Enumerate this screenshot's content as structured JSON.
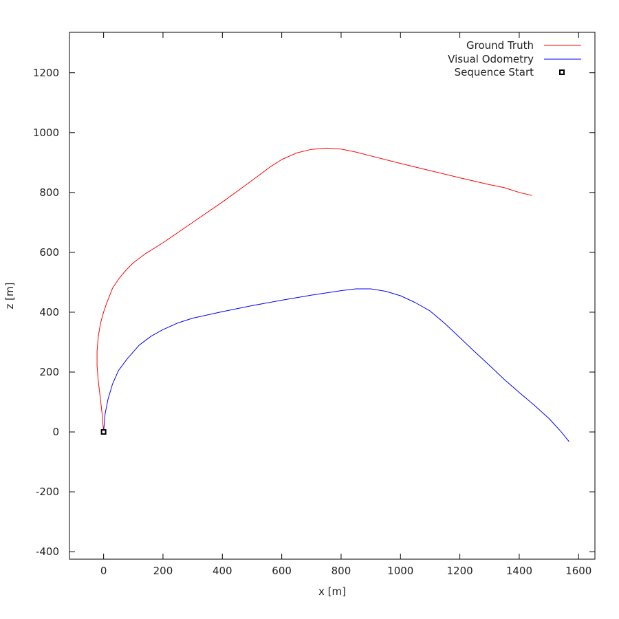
{
  "chart_data": {
    "type": "line",
    "xlabel": "x [m]",
    "ylabel": "z [m]",
    "xlim": [
      -115,
      1655
    ],
    "ylim": [
      -425,
      1335
    ],
    "xticks": [
      0,
      200,
      400,
      600,
      800,
      1000,
      1200,
      1400,
      1600
    ],
    "yticks": [
      -400,
      -200,
      0,
      200,
      400,
      600,
      800,
      1000,
      1200
    ],
    "grid": false,
    "legend_position": "top-right",
    "series": [
      {
        "name": "Ground Truth",
        "color": "#ff0000",
        "points": [
          [
            0,
            0
          ],
          [
            -5,
            60
          ],
          [
            -12,
            120
          ],
          [
            -18,
            170
          ],
          [
            -22,
            220
          ],
          [
            -22,
            270
          ],
          [
            -18,
            320
          ],
          [
            -10,
            365
          ],
          [
            0,
            400
          ],
          [
            10,
            430
          ],
          [
            30,
            480
          ],
          [
            50,
            510
          ],
          [
            75,
            540
          ],
          [
            100,
            565
          ],
          [
            140,
            595
          ],
          [
            200,
            632
          ],
          [
            300,
            700
          ],
          [
            400,
            768
          ],
          [
            500,
            840
          ],
          [
            560,
            885
          ],
          [
            600,
            910
          ],
          [
            650,
            932
          ],
          [
            700,
            944
          ],
          [
            750,
            948
          ],
          [
            800,
            945
          ],
          [
            850,
            935
          ],
          [
            900,
            922
          ],
          [
            1000,
            897
          ],
          [
            1100,
            873
          ],
          [
            1200,
            849
          ],
          [
            1300,
            826
          ],
          [
            1350,
            816
          ],
          [
            1400,
            800
          ],
          [
            1443,
            790
          ]
        ]
      },
      {
        "name": "Visual Odometry",
        "color": "#0000ff",
        "points": [
          [
            0,
            0
          ],
          [
            5,
            60
          ],
          [
            15,
            110
          ],
          [
            30,
            160
          ],
          [
            50,
            205
          ],
          [
            80,
            245
          ],
          [
            120,
            290
          ],
          [
            160,
            320
          ],
          [
            200,
            342
          ],
          [
            250,
            364
          ],
          [
            300,
            380
          ],
          [
            400,
            402
          ],
          [
            500,
            422
          ],
          [
            600,
            440
          ],
          [
            700,
            457
          ],
          [
            800,
            472
          ],
          [
            850,
            478
          ],
          [
            900,
            478
          ],
          [
            950,
            470
          ],
          [
            1000,
            455
          ],
          [
            1050,
            432
          ],
          [
            1100,
            404
          ],
          [
            1150,
            362
          ],
          [
            1200,
            315
          ],
          [
            1250,
            268
          ],
          [
            1300,
            222
          ],
          [
            1350,
            175
          ],
          [
            1400,
            132
          ],
          [
            1450,
            90
          ],
          [
            1500,
            45
          ],
          [
            1540,
            2
          ],
          [
            1568,
            -32
          ]
        ]
      }
    ],
    "markers": [
      {
        "name": "Sequence Start",
        "x": 0,
        "y": 0,
        "color": "#000000",
        "shape": "square"
      }
    ]
  }
}
